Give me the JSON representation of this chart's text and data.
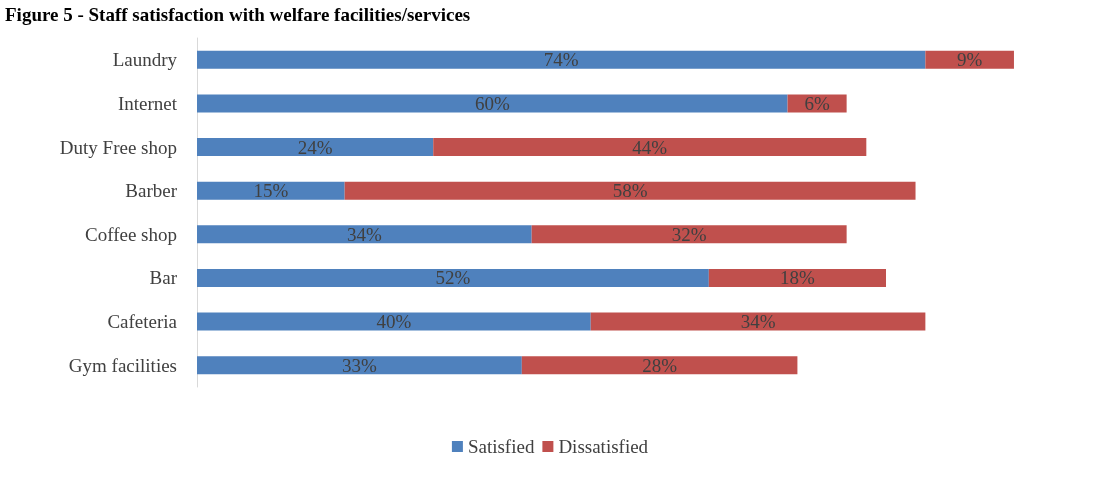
{
  "chart_data": {
    "type": "bar",
    "orientation": "horizontal",
    "stacked": true,
    "title": "Figure 5 - Staff satisfaction with welfare facilities/services",
    "categories": [
      "Laundry",
      "Internet",
      "Duty Free shop",
      "Barber",
      "Coffee shop",
      "Bar",
      "Cafeteria",
      "Gym facilities"
    ],
    "series": [
      {
        "name": "Satisfied",
        "color": "#4f81bd",
        "values": [
          74,
          60,
          24,
          15,
          34,
          52,
          40,
          33
        ],
        "value_labels": [
          "74%",
          "60%",
          "24%",
          "15%",
          "34%",
          "52%",
          "40%",
          "33%"
        ]
      },
      {
        "name": "Dissatisfied",
        "color": "#c0504d",
        "values": [
          9,
          6,
          44,
          58,
          32,
          18,
          34,
          28
        ],
        "value_labels": [
          "9%",
          "6%",
          "44%",
          "58%",
          "32%",
          "18%",
          "34%",
          "28%"
        ]
      }
    ],
    "legend": "bottom"
  }
}
